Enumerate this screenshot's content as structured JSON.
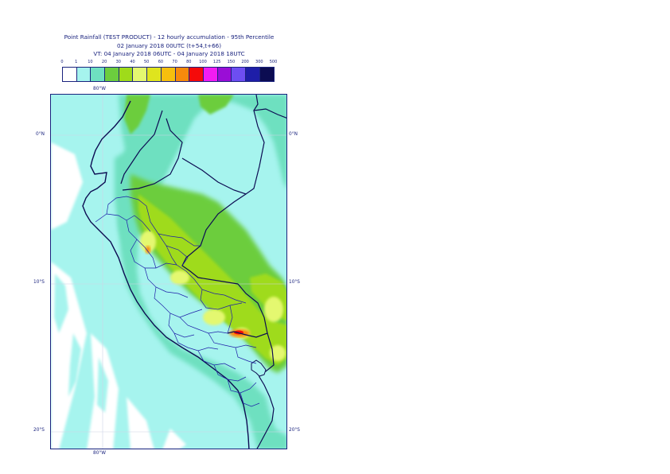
{
  "title": {
    "line1": "Point Rainfall (TEST PRODUCT) - 12 hourly accumulation - 95th Percentile",
    "line2": "02 January 2018 00UTC (t+54,t+66)",
    "line3": "VT: 04 January 2018 06UTC - 04 January 2018 18UTC"
  },
  "legend": {
    "thresholds": [
      "0",
      "1",
      "10",
      "20",
      "30",
      "40",
      "50",
      "60",
      "70",
      "80",
      "100",
      "125",
      "150",
      "200",
      "300",
      "500"
    ],
    "colors": [
      "#ffffff",
      "#a6f4ee",
      "#6ee0c0",
      "#6ccd3e",
      "#9fdb1a",
      "#e4f870",
      "#dfe41e",
      "#f6bf0e",
      "#f78a0c",
      "#f50a0a",
      "#f21cf2",
      "#9a0ed6",
      "#6d4ef2",
      "#1e1ea8",
      "#0c0c52"
    ]
  },
  "axes": {
    "lon_top": "80°W",
    "lon_bottom": "80°W",
    "lat_0_left": "0°N",
    "lat_0_right": "0°N",
    "lat_10_left": "10°S",
    "lat_10_right": "10°S",
    "lat_20_left": "20°S",
    "lat_20_right": "20°S"
  },
  "map": {
    "ocean_color": "#a6f4ee",
    "land_low_color": "#6ee0c0",
    "moderate_color": "#6ccd3e",
    "heavy_color": "#9fdb1a",
    "heavier_color": "#e4f870",
    "intense_color": "#f78a0c",
    "extreme_color": "#f50a0a",
    "coast_color": "#0c0c52",
    "admin_color": "#1e1ea8"
  }
}
